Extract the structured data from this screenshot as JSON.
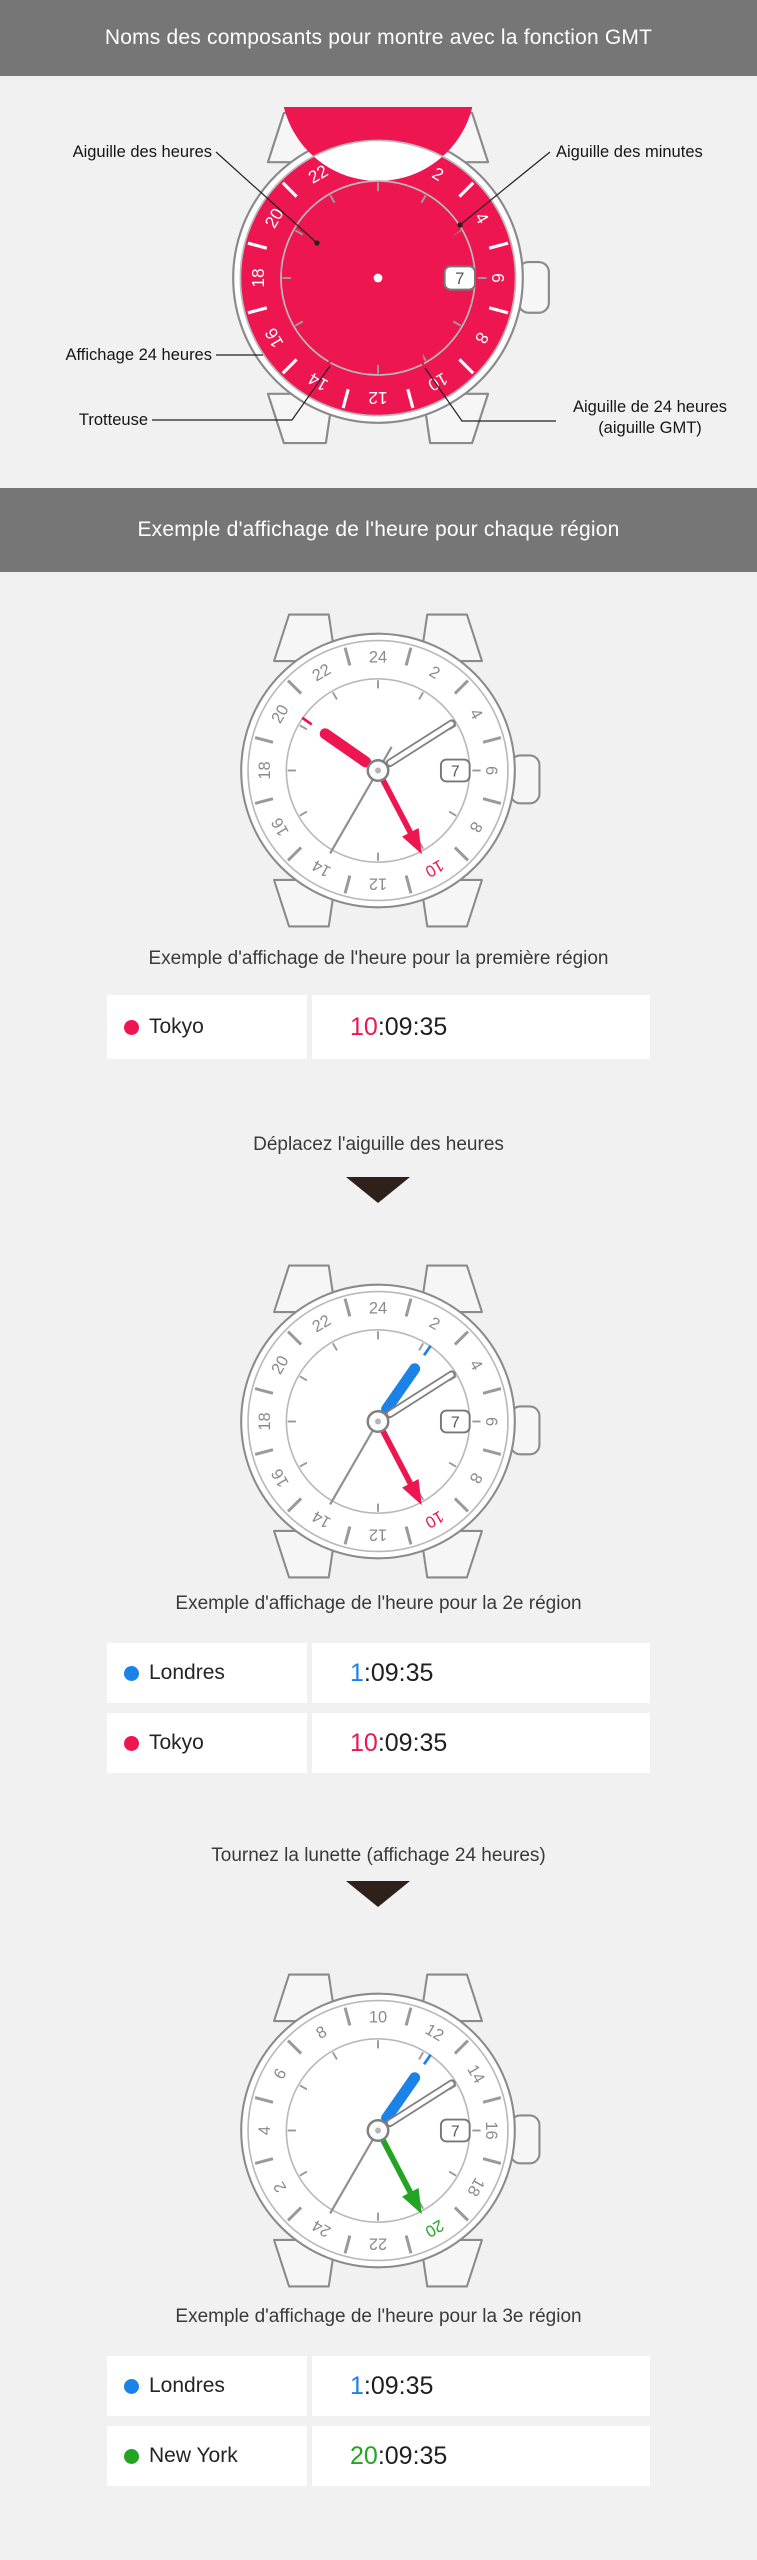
{
  "colors": {
    "red": "#ed1650",
    "blue": "#1b82e8",
    "green": "#23a423",
    "header_bg": "#767676",
    "page_bg": "#f1f1f1",
    "arrow": "#2e211c",
    "case_stroke": "#8a8a8a"
  },
  "header1": {
    "title": "Noms des composants pour montre avec la fonction GMT"
  },
  "header2": {
    "title": "Exemple d'affichage de l'heure pour chaque région"
  },
  "diagram": {
    "labels": {
      "hour": {
        "text": "Aiguille des heures"
      },
      "minute": {
        "text": "Aiguille des minutes"
      },
      "display24": {
        "text": "Affichage 24 heures"
      },
      "second": {
        "text": "Trotteuse"
      },
      "gmt_line1": {
        "text": "Aiguille de 24 heures"
      },
      "gmt_line2": {
        "text": "(aiguille GMT)"
      }
    }
  },
  "steps": [
    {
      "text": "Déplacez l'aiguille des heures"
    },
    {
      "text": "Tournez la lunette (affichage 24 heures)"
    }
  ],
  "examples": [
    {
      "caption": "Exemple d'affichage de l'heure pour la première région",
      "rows": [
        {
          "city": "Tokyo",
          "dot_color": "#ed1650",
          "hour": "10",
          "rest": ":09:35",
          "hour_color": "#ed1650"
        }
      ]
    },
    {
      "caption": "Exemple d'affichage de l'heure pour la 2e région",
      "rows": [
        {
          "city": "Londres",
          "dot_color": "#1b82e8",
          "hour": "1",
          "rest": ":09:35",
          "hour_color": "#1b82e8"
        },
        {
          "city": "Tokyo",
          "dot_color": "#ed1650",
          "hour": "10",
          "rest": ":09:35",
          "hour_color": "#ed1650"
        }
      ]
    },
    {
      "caption": "Exemple d'affichage de l'heure pour la 3e région",
      "rows": [
        {
          "city": "Londres",
          "dot_color": "#1b82e8",
          "hour": "1",
          "rest": ":09:35",
          "hour_color": "#1b82e8"
        },
        {
          "city": "New York",
          "dot_color": "#23a423",
          "hour": "20",
          "rest": ":09:35",
          "hour_color": "#23a423"
        }
      ]
    }
  ],
  "watches": [
    {
      "id": "diagram-watch",
      "style": "red-bezel",
      "bezel_rotation_hours": 0,
      "date": "7",
      "numbers_color": "#ffffff",
      "highlight_number": null,
      "hour": {
        "angle": 304.8,
        "color": "#ed1650"
      },
      "minute": {
        "angle": 57.5,
        "type": "solid",
        "color": "#ed1650"
      },
      "second": {
        "angle": 210,
        "color": "#ed1650"
      },
      "gmt": {
        "angle": 152.4,
        "color": "#ed1650"
      },
      "marker": null
    },
    {
      "id": "example-1-watch",
      "style": "white-bezel",
      "bezel_rotation_hours": 0,
      "date": "7",
      "numbers_color": "#8a8a8a",
      "highlight_number": {
        "value": 10,
        "color": "#ed1650"
      },
      "hour": {
        "angle": 304.8,
        "color": "#ed1650"
      },
      "minute": {
        "angle": 57.5,
        "type": "outline"
      },
      "second": {
        "angle": 210,
        "color": "#909090"
      },
      "gmt": {
        "angle": 152.4,
        "color": "#ed1650"
      },
      "marker": {
        "angle": 304.8,
        "color": "#ed1650"
      }
    },
    {
      "id": "example-2-watch",
      "style": "white-bezel",
      "bezel_rotation_hours": 0,
      "date": "7",
      "numbers_color": "#8a8a8a",
      "highlight_number": {
        "value": 10,
        "color": "#ed1650"
      },
      "hour": {
        "angle": 34.8,
        "color": "#1b82e8"
      },
      "minute": {
        "angle": 57.5,
        "type": "outline"
      },
      "second": {
        "angle": 210,
        "color": "#909090"
      },
      "gmt": {
        "angle": 152.4,
        "color": "#ed1650"
      },
      "marker": {
        "angle": 34.8,
        "color": "#1b82e8"
      }
    },
    {
      "id": "example-3-watch",
      "style": "white-bezel",
      "bezel_rotation_hours": 10,
      "date": "7",
      "numbers_color": "#8a8a8a",
      "highlight_number": {
        "value": 20,
        "color": "#23a423"
      },
      "hour": {
        "angle": 34.8,
        "color": "#1b82e8"
      },
      "minute": {
        "angle": 57.5,
        "type": "outline"
      },
      "second": {
        "angle": 210,
        "color": "#909090"
      },
      "gmt": {
        "angle": 152.4,
        "color": "#23a423"
      },
      "marker": {
        "angle": 34.8,
        "color": "#1b82e8"
      }
    }
  ]
}
